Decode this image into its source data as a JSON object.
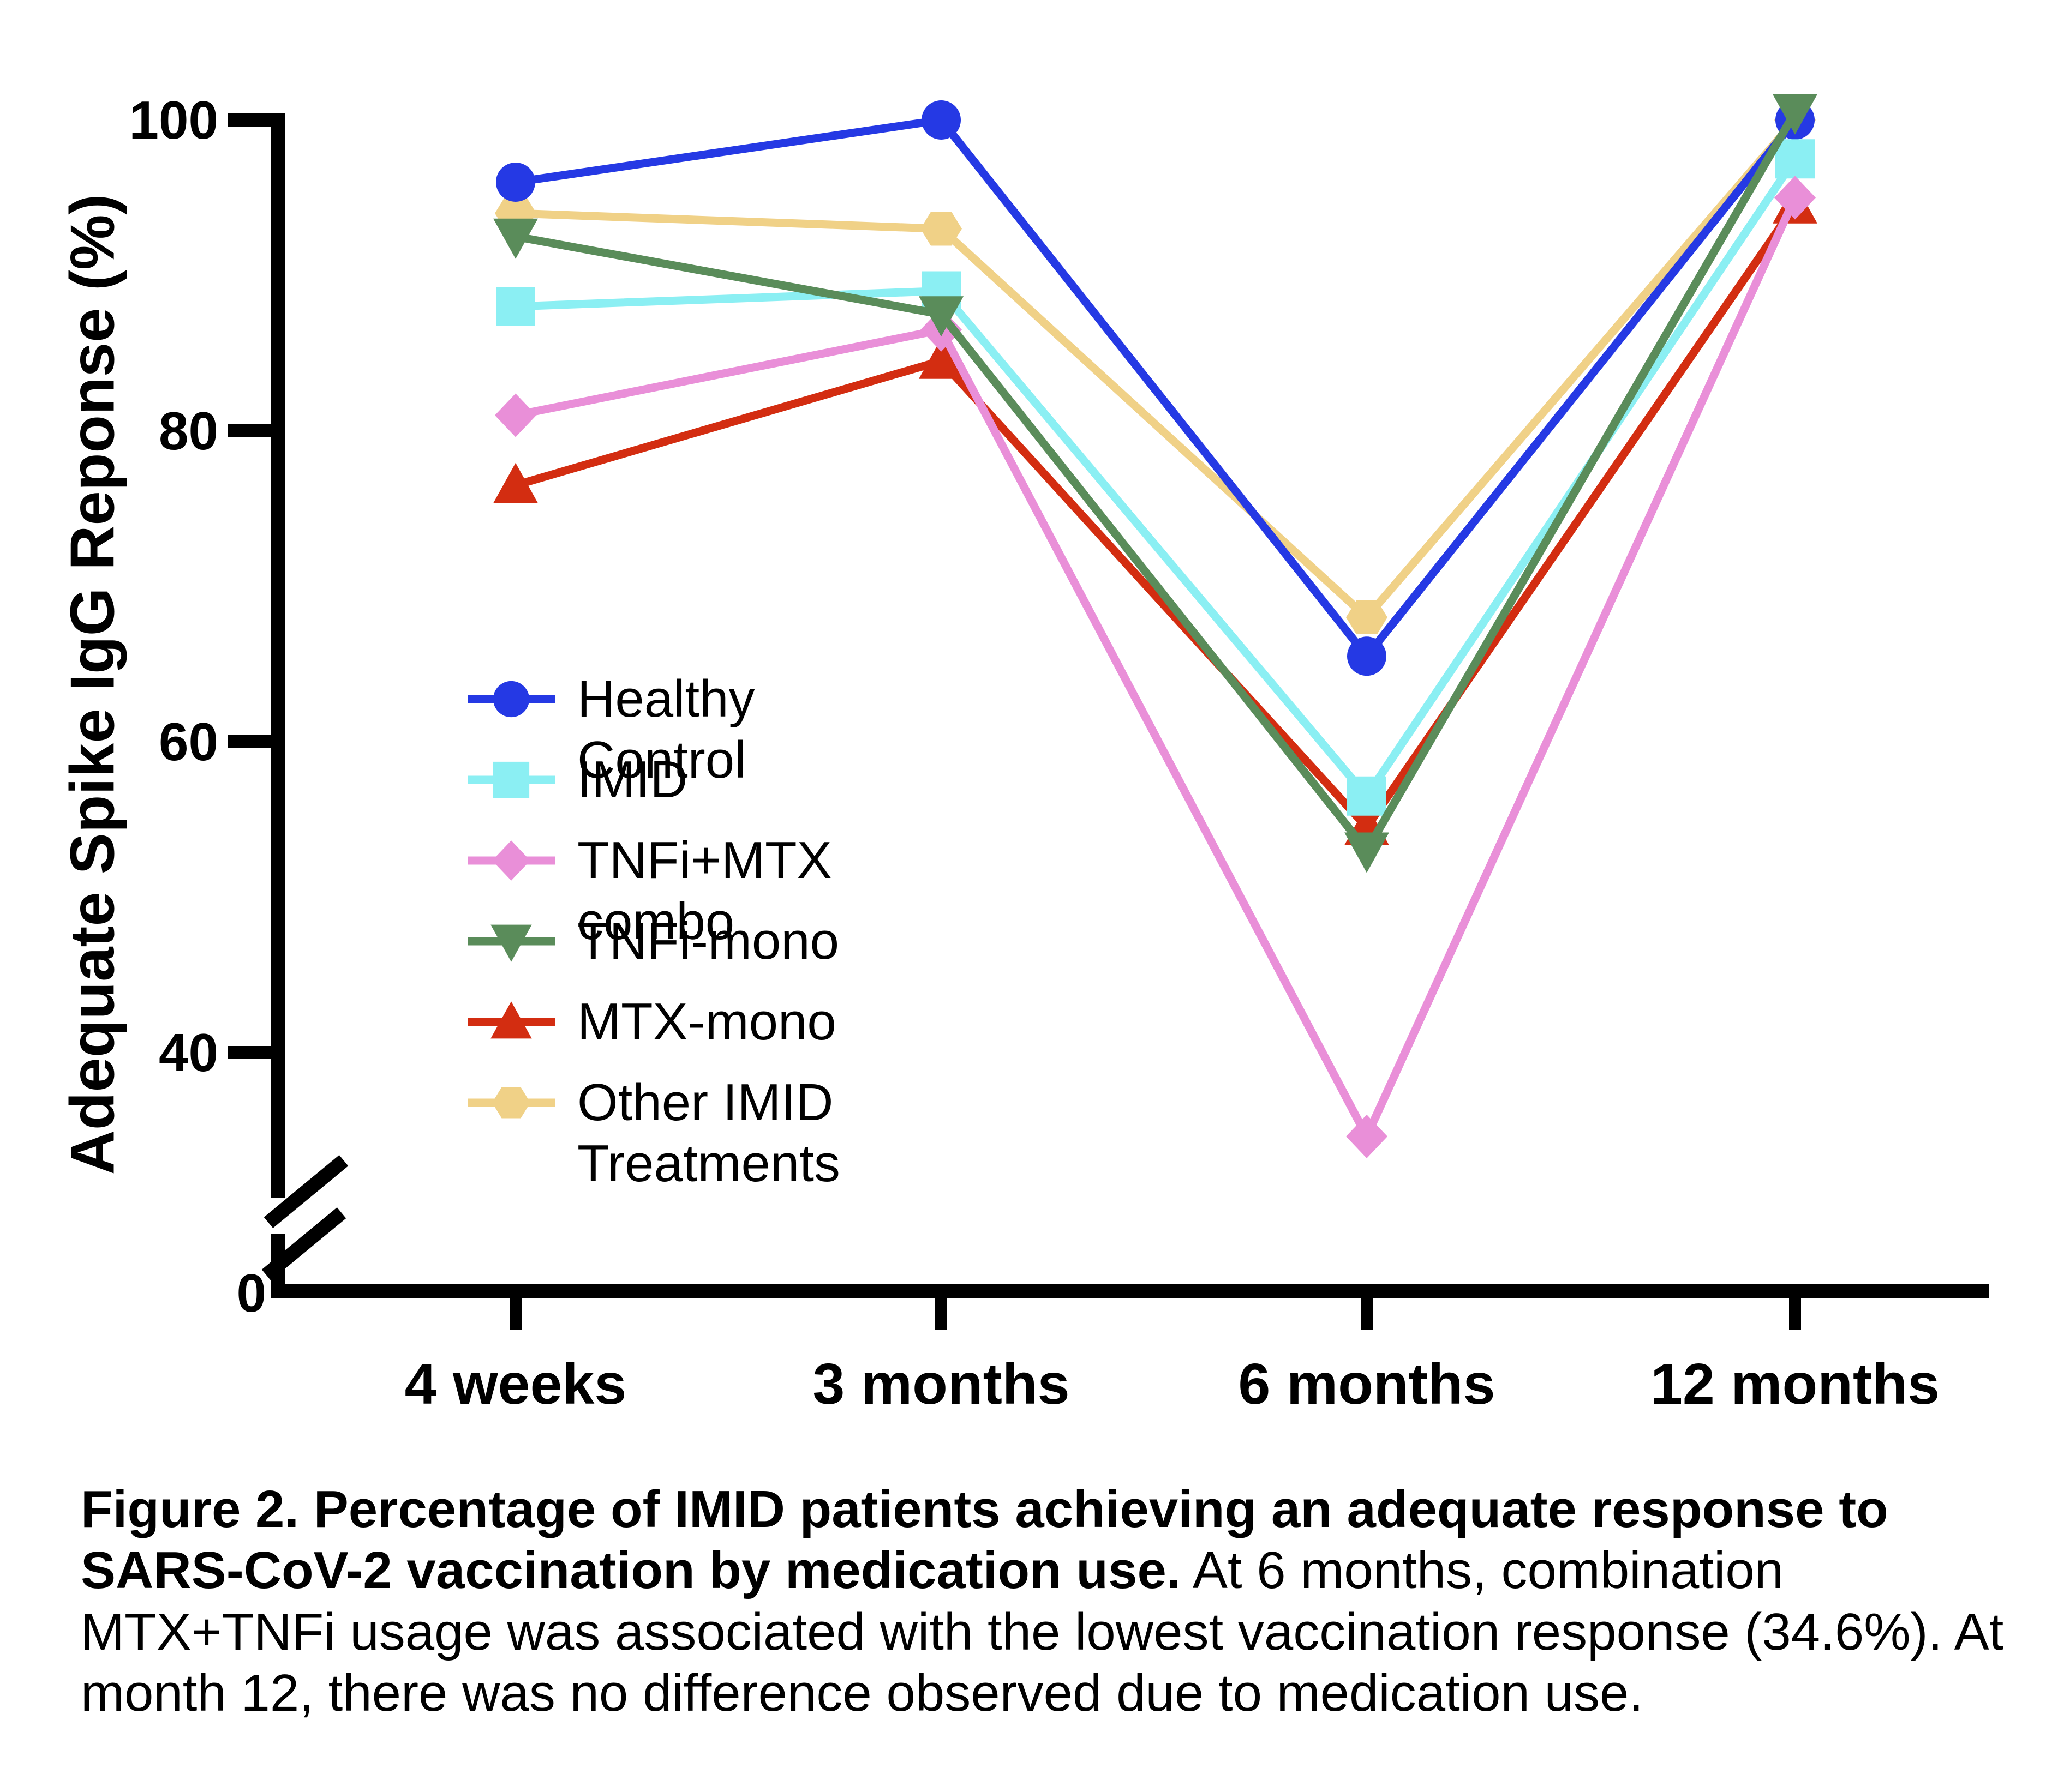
{
  "figure": {
    "caption_bold": "Figure 2. Percentage of IMID patients achieving an adequate response to SARS-CoV-2 vaccination by medication use.",
    "caption_regular": " At 6 months, combination MTX+TNFi usage was associated with the lowest vaccination response (34.6%). At month 12, there was no difference observed due to medication use."
  },
  "icons": {
    "axis_break": "double-slash-break-mark",
    "legend_markers": [
      "circle",
      "square",
      "diamond",
      "triangle-down",
      "triangle-up",
      "hexagon"
    ]
  },
  "chart_data": {
    "type": "line",
    "title": "",
    "xlabel": "",
    "ylabel": "Adequate Spike IgG Reponse (%)",
    "categories": [
      "4 weeks",
      "3 months",
      "6 months",
      "12 months"
    ],
    "y_tick_labels": [
      "100",
      "80",
      "60",
      "40"
    ],
    "y_origin_label": "0",
    "ylim": [
      0,
      100
    ],
    "y_axis_break": true,
    "grid": false,
    "legend_position": "inside-left",
    "series": [
      {
        "name": "Healthy Control",
        "marker": "circle",
        "color": "#2539E4",
        "values": [
          96,
          100,
          65.5,
          100
        ]
      },
      {
        "name": "IMID",
        "marker": "square",
        "color": "#8BEFF3",
        "values": [
          88,
          89,
          56.5,
          97.5
        ]
      },
      {
        "name": "TNFi+MTX combo",
        "marker": "diamond",
        "color": "#E98FD8",
        "values": [
          81,
          86.5,
          34.6,
          95
        ]
      },
      {
        "name": "TNFi-mono",
        "marker": "triangle-down",
        "color": "#5A8C5A",
        "values": [
          92.5,
          87.5,
          53,
          100.5
        ]
      },
      {
        "name": "MTX-mono",
        "marker": "triangle-up",
        "color": "#D32D11",
        "values": [
          76.5,
          84.5,
          54.5,
          94.5
        ]
      },
      {
        "name": "Other IMID Treatments",
        "marker": "hexagon",
        "color": "#F0D187",
        "values": [
          94,
          93,
          68,
          100
        ]
      }
    ],
    "draw_order": [
      "Other IMID Treatments",
      "Healthy Control",
      "MTX-mono",
      "IMID",
      "TNFi+MTX combo",
      "TNFi-mono"
    ],
    "annotation": "TNFi+MTX combo lowest at 6 months (34.6%); no difference at month 12"
  }
}
